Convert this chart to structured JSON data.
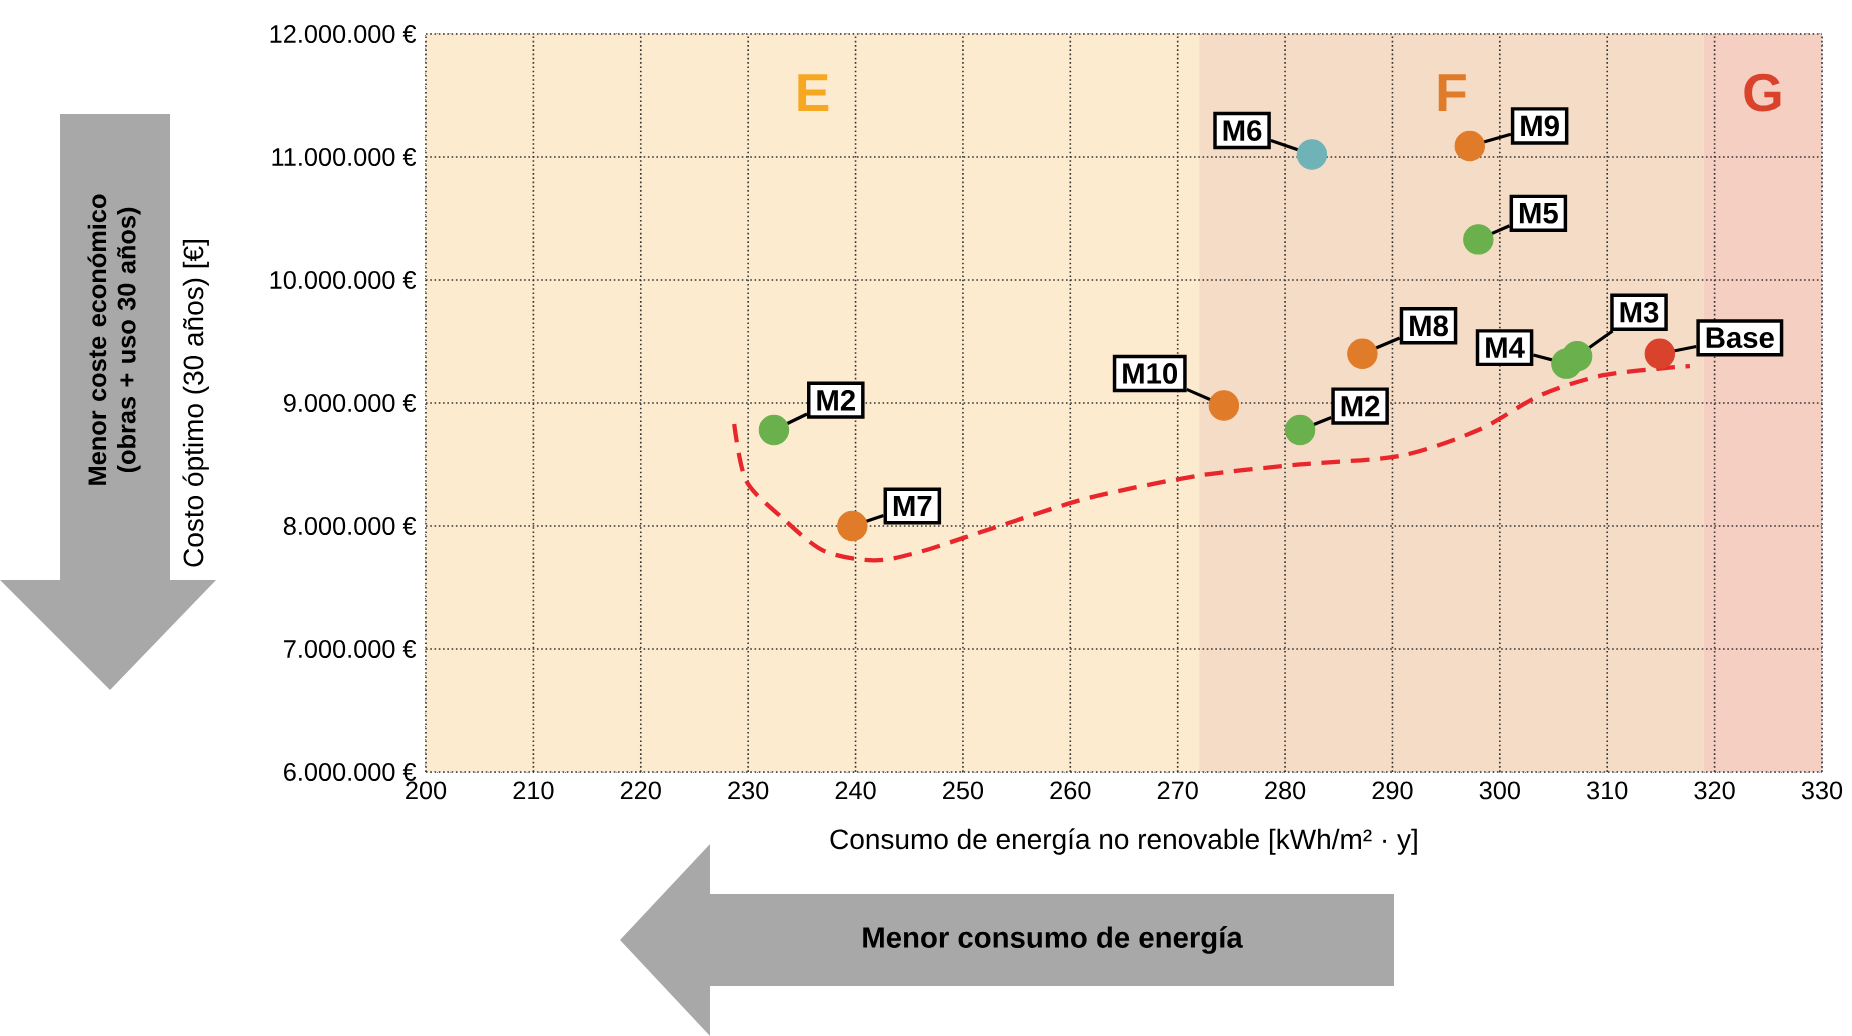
{
  "chart_data": {
    "type": "scatter",
    "xlabel": "Consumo de energía no renovable [kWh/m² · y]",
    "ylabel": "Costo óptimo (30 años) [€]",
    "xlim": [
      200,
      330
    ],
    "xticks": [
      200,
      210,
      220,
      230,
      240,
      250,
      260,
      270,
      280,
      290,
      300,
      310,
      320,
      330
    ],
    "ylim": [
      6000000,
      12000000
    ],
    "yticks": [
      {
        "value": 6000000,
        "label": "6.000.000 €"
      },
      {
        "value": 7000000,
        "label": "7.000.000 €"
      },
      {
        "value": 8000000,
        "label": "8.000.000 €"
      },
      {
        "value": 9000000,
        "label": "9.000.000 €"
      },
      {
        "value": 10000000,
        "label": "10.000.000 €"
      },
      {
        "value": 11000000,
        "label": "11.000.000 €"
      },
      {
        "value": 12000000,
        "label": "12.000.000 €"
      }
    ],
    "grid": true,
    "bands": [
      {
        "axis": "x",
        "from": 200,
        "to": 272,
        "label": "E",
        "color": "#fdebd0"
      },
      {
        "axis": "x",
        "from": 272,
        "to": 319,
        "label": "F",
        "color": "#f5dcc6"
      },
      {
        "axis": "x",
        "from": 319,
        "to": 330,
        "label": "G",
        "color": "#f5cfc2"
      }
    ],
    "series": [
      {
        "type": "line",
        "color": "#e8262b",
        "line_style": "dashed",
        "x": [
          228.7,
          229.8,
          233,
          237,
          241.7,
          246,
          253.4,
          261.8,
          272,
          281.4,
          290.7,
          298,
          303.7,
          309.3,
          314.9,
          317.7
        ],
        "values": [
          8830000,
          8370000,
          8080000,
          7800000,
          7720000,
          7790000,
          8000000,
          8230000,
          8410000,
          8500000,
          8570000,
          8780000,
          9060000,
          9220000,
          9280000,
          9300000
        ]
      },
      {
        "type": "scatter",
        "marker": "circle",
        "x": [
          232.4,
          239.7,
          274.3,
          281.4,
          282.5,
          297.2,
          298,
          287.2,
          306.2,
          307.2,
          314.9
        ],
        "values": [
          8780000,
          8000000,
          8980000,
          8780000,
          11020000,
          11090000,
          10330000,
          9400000,
          9320000,
          9380000,
          9400000
        ],
        "colors": [
          "#6ab04c",
          "#e07b2a",
          "#e07b2a",
          "#6ab04c",
          "#6fb3b8",
          "#e07b2a",
          "#6ab04c",
          "#e07b2a",
          "#6ab04c",
          "#6ab04c",
          "#d9432b"
        ]
      }
    ],
    "annotations": [
      {
        "text": "M2",
        "x": 232.4,
        "y": 8780000
      },
      {
        "text": "M7",
        "x": 239.7,
        "y": 8000000
      },
      {
        "text": "M10",
        "x": 274.3,
        "y": 8980000
      },
      {
        "text": "M2",
        "x": 281.4,
        "y": 8780000
      },
      {
        "text": "M6",
        "x": 282.5,
        "y": 11020000
      },
      {
        "text": "M9",
        "x": 297.2,
        "y": 11090000
      },
      {
        "text": "M5",
        "x": 298,
        "y": 10330000
      },
      {
        "text": "M8",
        "x": 287.2,
        "y": 9400000
      },
      {
        "text": "M4",
        "x": 306.2,
        "y": 9320000
      },
      {
        "text": "M3",
        "x": 307.2,
        "y": 9380000
      },
      {
        "text": "Base",
        "x": 314.9,
        "y": 9400000
      },
      "Menor coste económico (obras + uso 30 años)",
      "Menor consumo de energía"
    ]
  }
}
